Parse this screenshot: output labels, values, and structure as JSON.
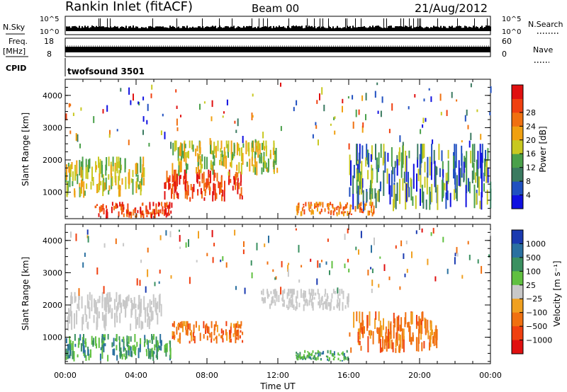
{
  "header": {
    "station": "Rankin Inlet (fitACF)",
    "beam": "Beam 00",
    "date": "21/Aug/2012"
  },
  "summary": {
    "nsky_label": "N.Sky",
    "nsky_ticks": [
      "10^5",
      "10^0"
    ],
    "nsearch_label": "N.Search",
    "nsearch_ticks": [
      "10^5",
      "10^0"
    ],
    "freq_label_1": "Freq.",
    "freq_label_2": "[MHz]",
    "freq_ticks": [
      "18",
      "8"
    ],
    "nave_label": "Nave",
    "nave_ticks": [
      "60",
      "0"
    ],
    "cpid_label": "CPID",
    "cpid_value": "twofsound 3501"
  },
  "chart_data": [
    {
      "type": "heatmap",
      "name": "power",
      "ylabel": "Slant Range [km]",
      "xlabel": "",
      "xlim": [
        "00:00",
        "00:00"
      ],
      "ylim": [
        180,
        4500
      ],
      "y_ticks": [
        "1000",
        "2000",
        "3000",
        "4000"
      ],
      "colorbar": {
        "label": "Power [dB]",
        "ticks": [
          "4",
          "8",
          "12",
          "16",
          "20",
          "24",
          "28"
        ],
        "colors": [
          "#1010e0",
          "#2050c0",
          "#3a7a60",
          "#4aa04a",
          "#c8c820",
          "#f0a010",
          "#f07010",
          "#f04010",
          "#e01010"
        ]
      },
      "features": [
        {
          "t_start": 0.0,
          "t_end": 4.5,
          "r_min": 800,
          "r_max": 2100,
          "level": "mid"
        },
        {
          "t_start": 1.5,
          "t_end": 6.0,
          "r_min": 180,
          "r_max": 700,
          "level": "high"
        },
        {
          "t_start": 5.5,
          "t_end": 10.0,
          "r_min": 700,
          "r_max": 1700,
          "level": "high"
        },
        {
          "t_start": 6.0,
          "t_end": 12.0,
          "r_min": 1500,
          "r_max": 2600,
          "level": "mid"
        },
        {
          "t_start": 13.0,
          "t_end": 17.5,
          "r_min": 250,
          "r_max": 700,
          "level": "mid-high"
        },
        {
          "t_start": 16.0,
          "t_end": 24.0,
          "r_min": 400,
          "r_max": 2500,
          "level": "low-mid"
        }
      ]
    },
    {
      "type": "heatmap",
      "name": "velocity",
      "ylabel": "Slant Range [km]",
      "xlabel": "Time UT",
      "xlim": [
        "00:00",
        "00:00"
      ],
      "ylim": [
        180,
        4500
      ],
      "y_ticks": [
        "1000",
        "2000",
        "3000",
        "4000"
      ],
      "x_ticks": [
        "00:00",
        "04:00",
        "08:00",
        "12:00",
        "16:00",
        "20:00",
        "00:00"
      ],
      "colorbar": {
        "label": "Velocity [m s⁻¹]",
        "ticks": [
          "1000",
          "500",
          "100",
          "25",
          "−25",
          "−100",
          "−500",
          "−1000"
        ],
        "colors": [
          "#1a3ab0",
          "#2a70a0",
          "#3a9060",
          "#60c040",
          "#c8c8c8",
          "#f0a020",
          "#f07010",
          "#f04010",
          "#e01010"
        ]
      },
      "features": [
        {
          "t_start": 0.0,
          "t_end": 5.5,
          "r_min": 1200,
          "r_max": 2400,
          "level": "near-zero"
        },
        {
          "t_start": 0.0,
          "t_end": 6.0,
          "r_min": 250,
          "r_max": 1100,
          "level": "positive"
        },
        {
          "t_start": 6.0,
          "t_end": 10.0,
          "r_min": 800,
          "r_max": 1500,
          "level": "negative"
        },
        {
          "t_start": 11.0,
          "t_end": 16.0,
          "r_min": 1800,
          "r_max": 2500,
          "level": "near-zero"
        },
        {
          "t_start": 13.0,
          "t_end": 16.0,
          "r_min": 250,
          "r_max": 600,
          "level": "positive"
        },
        {
          "t_start": 16.0,
          "t_end": 21.0,
          "r_min": 500,
          "r_max": 1800,
          "level": "negative"
        }
      ]
    }
  ]
}
